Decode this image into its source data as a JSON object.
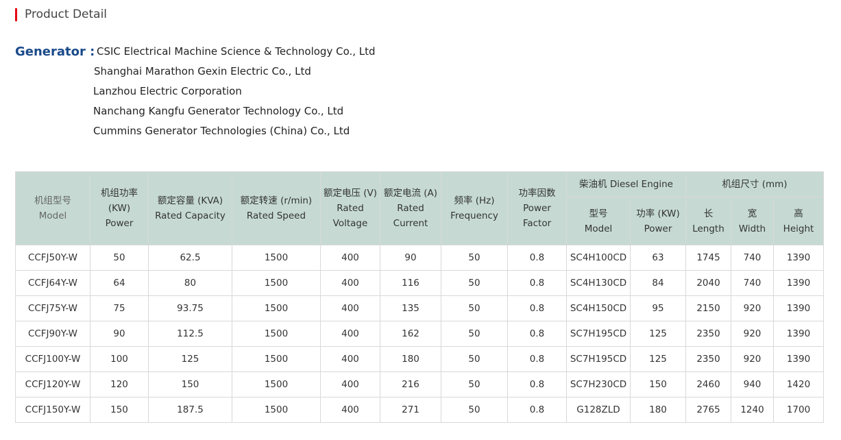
{
  "section_title": "Product Detail",
  "generator": {
    "label": "Generator :",
    "companies": [
      "CSIC Electrical Machine Science & Technology Co., Ltd",
      "Shanghai Marathon Gexin Electric Co., Ltd",
      "Lanzhou Electric Corporation",
      "Nanchang Kangfu Generator Technology Co., Ltd",
      "Cummins Generator Technologies (China) Co., Ltd"
    ]
  },
  "table": {
    "headers": {
      "model": [
        "机组型号",
        "Model"
      ],
      "power": [
        "机组功率",
        "(KW)",
        "Power"
      ],
      "capacity": [
        "额定容量 (KVA)",
        "Rated Capacity"
      ],
      "speed": [
        "额定转速 (r/min)",
        "Rated Speed"
      ],
      "voltage": [
        "额定电压 (V)",
        "Rated",
        "Voltage"
      ],
      "current": [
        "额定电流 (A)",
        "Rated",
        "Current"
      ],
      "frequency": [
        "频率 (Hz)",
        "Frequency"
      ],
      "power_factor": [
        "功率因数",
        "Power",
        "Factor"
      ],
      "diesel": "柴油机 Diesel Engine",
      "diesel_model": [
        "型号",
        "Model"
      ],
      "diesel_power": [
        "功率 (KW)",
        "Power"
      ],
      "dims": "机组尺寸 (mm)",
      "length": [
        "长",
        "Length"
      ],
      "width": [
        "宽",
        "Width"
      ],
      "height": [
        "高",
        "Height"
      ]
    },
    "rows": [
      [
        "CCFJ50Y-W",
        "50",
        "62.5",
        "1500",
        "400",
        "90",
        "50",
        "0.8",
        "SC4H100CD",
        "63",
        "1745",
        "740",
        "1390"
      ],
      [
        "CCFJ64Y-W",
        "64",
        "80",
        "1500",
        "400",
        "116",
        "50",
        "0.8",
        "SC4H130CD",
        "84",
        "2040",
        "740",
        "1390"
      ],
      [
        "CCFJ75Y-W",
        "75",
        "93.75",
        "1500",
        "400",
        "135",
        "50",
        "0.8",
        "SC4H150CD",
        "95",
        "2150",
        "920",
        "1390"
      ],
      [
        "CCFJ90Y-W",
        "90",
        "112.5",
        "1500",
        "400",
        "162",
        "50",
        "0.8",
        "SC7H195CD",
        "125",
        "2350",
        "920",
        "1390"
      ],
      [
        "CCFJ100Y-W",
        "100",
        "125",
        "1500",
        "400",
        "180",
        "50",
        "0.8",
        "SC7H195CD",
        "125",
        "2350",
        "920",
        "1390"
      ],
      [
        "CCFJ120Y-W",
        "120",
        "150",
        "1500",
        "400",
        "216",
        "50",
        "0.8",
        "SC7H230CD",
        "150",
        "2460",
        "940",
        "1420"
      ],
      [
        "CCFJ150Y-W",
        "150",
        "187.5",
        "1500",
        "400",
        "271",
        "50",
        "0.8",
        "G128ZLD",
        "180",
        "2765",
        "1240",
        "1700"
      ]
    ]
  },
  "colors": {
    "accent": "#e60012",
    "label": "#1a4a8a",
    "header_bg": "#c6dad3"
  }
}
